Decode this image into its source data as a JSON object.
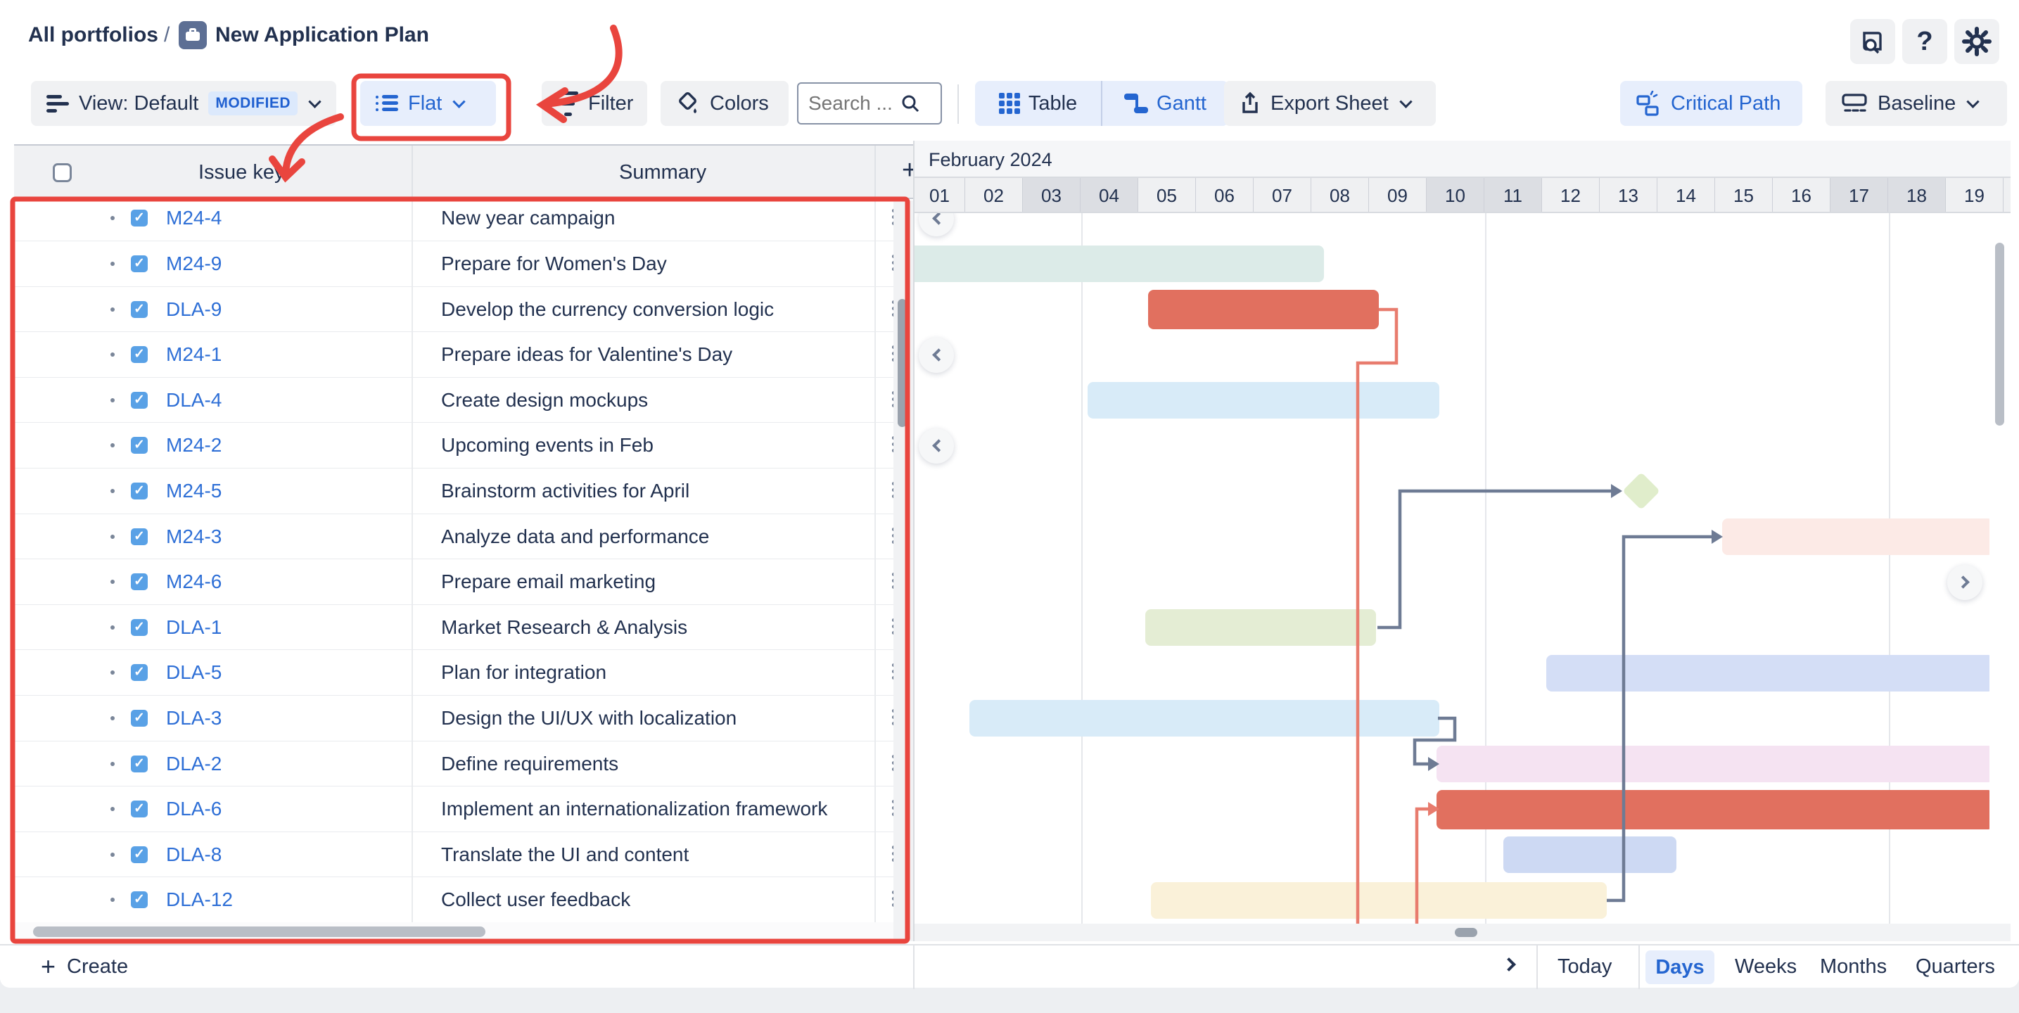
{
  "breadcrumb": {
    "portfolios": "All portfolios",
    "separator": "/",
    "plan_title": "New Application Plan"
  },
  "header_actions": {
    "doc_search": "book-search-icon",
    "help": "help-icon",
    "settings": "gear-icon"
  },
  "toolbar": {
    "view_label": "View: Default",
    "view_badge": "MODIFIED",
    "flat_label": "Flat",
    "filter_label": "Filter",
    "colors_label": "Colors",
    "search_placeholder": "Search ...",
    "table_label": "Table",
    "gantt_label": "Gantt",
    "export_label": "Export Sheet",
    "critical_path_label": "Critical Path",
    "baseline_label": "Baseline"
  },
  "table": {
    "headers": {
      "issue_key": "Issue key",
      "summary": "Summary",
      "add_column": "+"
    },
    "rows": [
      {
        "key": "M24-4",
        "summary": "New year campaign"
      },
      {
        "key": "M24-9",
        "summary": "Prepare for Women's Day"
      },
      {
        "key": "DLA-9",
        "summary": "Develop the currency conversion logic"
      },
      {
        "key": "M24-1",
        "summary": "Prepare ideas for Valentine's Day"
      },
      {
        "key": "DLA-4",
        "summary": "Create design mockups"
      },
      {
        "key": "M24-2",
        "summary": "Upcoming events in Feb"
      },
      {
        "key": "M24-5",
        "summary": "Brainstorm activities for April"
      },
      {
        "key": "M24-3",
        "summary": "Analyze data and performance"
      },
      {
        "key": "M24-6",
        "summary": "Prepare email marketing"
      },
      {
        "key": "DLA-1",
        "summary": "Market Research & Analysis"
      },
      {
        "key": "DLA-5",
        "summary": "Plan for integration"
      },
      {
        "key": "DLA-3",
        "summary": "Design the UI/UX with localization"
      },
      {
        "key": "DLA-2",
        "summary": "Define requirements"
      },
      {
        "key": "DLA-6",
        "summary": "Implement an internationalization framework"
      },
      {
        "key": "DLA-8",
        "summary": "Translate the UI and content"
      },
      {
        "key": "DLA-12",
        "summary": "Collect user feedback"
      }
    ]
  },
  "gantt": {
    "month_label": "February 2024",
    "days": [
      "01",
      "02",
      "03",
      "04",
      "05",
      "06",
      "07",
      "08",
      "09",
      "10",
      "11",
      "12",
      "13",
      "14",
      "15",
      "16",
      "17",
      "18",
      "19"
    ],
    "weekend_days": [
      "03",
      "04",
      "10",
      "11",
      "17",
      "18"
    ],
    "bars": [
      {
        "key": "M24-9",
        "row": 1,
        "start_day": 1.0,
        "end_day": 8.2,
        "color": "teal",
        "tall": false
      },
      {
        "key": "DLA-9",
        "row": 2,
        "start_day": 5.15,
        "end_day": 9.15,
        "color": "salmon",
        "tall": true
      },
      {
        "key": "DLA-4",
        "row": 4,
        "start_day": 4.1,
        "end_day": 10.2,
        "color": "paleblue",
        "tall": false
      },
      {
        "key": "M24-3",
        "row": 7,
        "start_day": 15.1,
        "end_day": 19.8,
        "color": "pink",
        "tall": false
      },
      {
        "key": "DLA-1",
        "row": 9,
        "start_day": 5.1,
        "end_day": 9.1,
        "color": "green",
        "tall": false
      },
      {
        "key": "DLA-5",
        "row": 10,
        "start_day": 12.05,
        "end_day": 19.8,
        "color": "periwinkle",
        "tall": false
      },
      {
        "key": "DLA-3",
        "row": 11,
        "start_day": 2.05,
        "end_day": 10.2,
        "color": "paleblue",
        "tall": false
      },
      {
        "key": "DLA-2",
        "row": 12,
        "start_day": 10.15,
        "end_day": 19.8,
        "color": "lilac",
        "tall": false
      },
      {
        "key": "DLA-6",
        "row": 13,
        "start_day": 10.15,
        "end_day": 19.8,
        "color": "salmon",
        "tall": true
      },
      {
        "key": "DLA-8",
        "row": 14,
        "start_day": 11.3,
        "end_day": 14.3,
        "color": "periwinkle2",
        "tall": false
      },
      {
        "key": "DLA-12",
        "row": 15,
        "start_day": 5.2,
        "end_day": 13.1,
        "color": "yellow",
        "tall": false
      }
    ],
    "milestones": [
      {
        "key": "M24-5",
        "row": 6,
        "day": 13.7,
        "color": "diamond"
      }
    ],
    "links": [
      {
        "name": "critical-from-DLA-9",
        "color": "red",
        "arrow": false,
        "points": [
          [
            660,
            137
          ],
          [
            685,
            137
          ],
          [
            685,
            213
          ],
          [
            630,
            213
          ],
          [
            630,
            1010
          ]
        ]
      },
      {
        "name": "critical-into-DLA-6",
        "color": "red",
        "arrow": true,
        "points": [
          [
            714,
            1010
          ],
          [
            714,
            847
          ],
          [
            730,
            847
          ]
        ]
      },
      {
        "name": "DLA-1-to-M24-5",
        "color": "gray",
        "arrow": true,
        "points": [
          [
            658,
            589
          ],
          [
            690,
            589
          ],
          [
            690,
            395
          ],
          [
            990,
            395
          ]
        ]
      },
      {
        "name": "DLA-12-to-M24-3",
        "color": "gray",
        "arrow": true,
        "points": [
          [
            984,
            977
          ],
          [
            1008,
            977
          ],
          [
            1008,
            460
          ],
          [
            1133,
            460
          ]
        ]
      },
      {
        "name": "DLA-3-to-DLA-2",
        "color": "gray",
        "arrow": true,
        "points": [
          [
            744,
            718
          ],
          [
            768,
            718
          ],
          [
            768,
            749
          ],
          [
            711,
            749
          ],
          [
            711,
            783
          ],
          [
            730,
            783
          ]
        ]
      }
    ],
    "scroll_hints": [
      {
        "side": "left",
        "row": 0
      },
      {
        "side": "left",
        "row": 3
      },
      {
        "side": "left",
        "row": 5
      },
      {
        "side": "right",
        "row": 8
      }
    ]
  },
  "footer": {
    "create_label": "Create",
    "today_label": "Today",
    "zoom_levels": [
      "Days",
      "Weeks",
      "Months",
      "Quarters"
    ],
    "selected_zoom": "Days"
  },
  "colors": {
    "accent_blue": "#2465d0",
    "navy_text": "#22314f",
    "annotation_red": "#e9453e",
    "critical_link": "#e87c6e",
    "dependency_gray": "#6e7b94",
    "teal": "#dcebe8",
    "salmon": "#e1705f",
    "paleblue": "#d8ebf8",
    "green": "#e4edd4",
    "periwinkle": "#d4def6",
    "periwinkle2": "#cdd9f3",
    "lilac": "#f5e3f2",
    "pink": "#fceae6",
    "yellow": "#faf1d9",
    "diamond": "#e0edcb"
  }
}
